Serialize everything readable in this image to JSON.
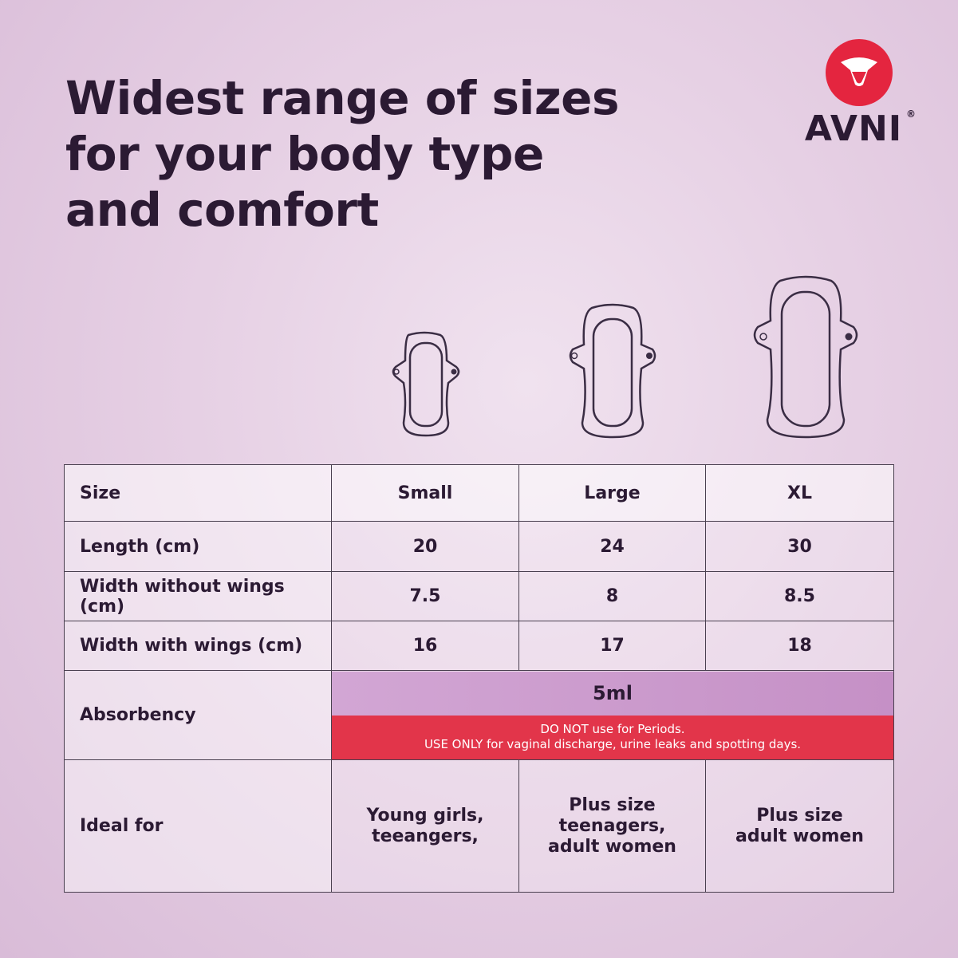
{
  "headline": {
    "line1": "Widest range of sizes",
    "line2": "for your body type",
    "line3": "and comfort"
  },
  "brand": {
    "name": "AVNI",
    "registered": "®",
    "accent": "#e4253f"
  },
  "pads": [
    "small-pad-icon",
    "large-pad-icon",
    "xl-pad-icon"
  ],
  "table": {
    "header": {
      "label": "Size",
      "small": "Small",
      "large": "Large",
      "xl": "XL"
    },
    "rows": [
      {
        "label": "Length (cm)",
        "small": "20",
        "large": "24",
        "xl": "30"
      },
      {
        "label": "Width without wings (cm)",
        "small": "7.5",
        "large": "8",
        "xl": "8.5"
      },
      {
        "label": "Width with wings (cm)",
        "small": "16",
        "large": "17",
        "xl": "18"
      }
    ],
    "absorbency": {
      "label": "Absorbency",
      "value": "5ml",
      "warning_line1": "DO NOT use for Periods.",
      "warning_line2": "USE ONLY for vaginal discharge, urine leaks and spotting days."
    },
    "ideal_for": {
      "label": "Ideal for",
      "small": [
        "Young girls,",
        "teeangers,"
      ],
      "large": [
        "Plus size",
        "teenagers,",
        "adult women"
      ],
      "xl": [
        "Plus size",
        "adult women"
      ]
    }
  },
  "colors": {
    "text": "#2b1a33",
    "warning_bg": "#e2354a",
    "absorbency_bg": "#c99acb"
  }
}
